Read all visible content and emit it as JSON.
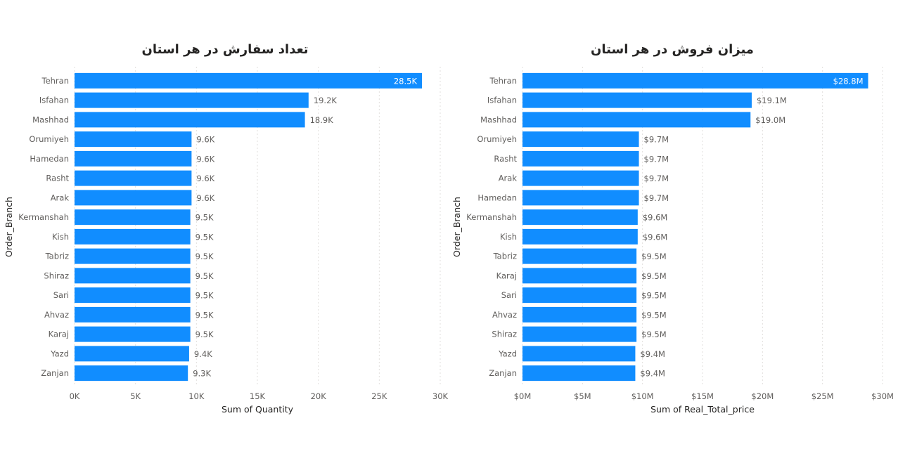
{
  "chart_data": [
    {
      "type": "bar",
      "orientation": "horizontal",
      "title": "تعداد سفارش در هر استان",
      "xlabel": "Sum of Quantity",
      "ylabel": "Order_Branch",
      "xlim": [
        0,
        30000
      ],
      "ticks": [
        "0K",
        "5K",
        "10K",
        "15K",
        "20K",
        "25K",
        "30K"
      ],
      "categories": [
        "Tehran",
        "Isfahan",
        "Mashhad",
        "Orumiyeh",
        "Hamedan",
        "Rasht",
        "Arak",
        "Kermanshah",
        "Kish",
        "Tabriz",
        "Shiraz",
        "Sari",
        "Ahvaz",
        "Karaj",
        "Yazd",
        "Zanjan"
      ],
      "values": [
        28500,
        19200,
        18900,
        9600,
        9600,
        9600,
        9600,
        9500,
        9500,
        9500,
        9500,
        9500,
        9500,
        9500,
        9400,
        9300
      ],
      "labels": [
        "28.5K",
        "19.2K",
        "18.9K",
        "9.6K",
        "9.6K",
        "9.6K",
        "9.6K",
        "9.5K",
        "9.5K",
        "9.5K",
        "9.5K",
        "9.5K",
        "9.5K",
        "9.5K",
        "9.4K",
        "9.3K"
      ],
      "color": "#118dff",
      "grid": true
    },
    {
      "type": "bar",
      "orientation": "horizontal",
      "title": "میزان فروش در هر استان",
      "xlabel": "Sum of Real_Total_price",
      "ylabel": "Order_Branch",
      "xlim": [
        0,
        30
      ],
      "ticks": [
        "$0M",
        "$5M",
        "$10M",
        "$15M",
        "$20M",
        "$25M",
        "$30M"
      ],
      "categories": [
        "Tehran",
        "Isfahan",
        "Mashhad",
        "Orumiyeh",
        "Rasht",
        "Arak",
        "Hamedan",
        "Kermanshah",
        "Kish",
        "Tabriz",
        "Karaj",
        "Sari",
        "Ahvaz",
        "Shiraz",
        "Yazd",
        "Zanjan"
      ],
      "values": [
        28.8,
        19.1,
        19.0,
        9.7,
        9.7,
        9.7,
        9.7,
        9.6,
        9.6,
        9.5,
        9.5,
        9.5,
        9.5,
        9.5,
        9.4,
        9.4
      ],
      "labels": [
        "$28.8M",
        "$19.1M",
        "$19.0M",
        "$9.7M",
        "$9.7M",
        "$9.7M",
        "$9.7M",
        "$9.6M",
        "$9.6M",
        "$9.5M",
        "$9.5M",
        "$9.5M",
        "$9.5M",
        "$9.5M",
        "$9.4M",
        "$9.4M"
      ],
      "color": "#118dff",
      "grid": true
    }
  ]
}
